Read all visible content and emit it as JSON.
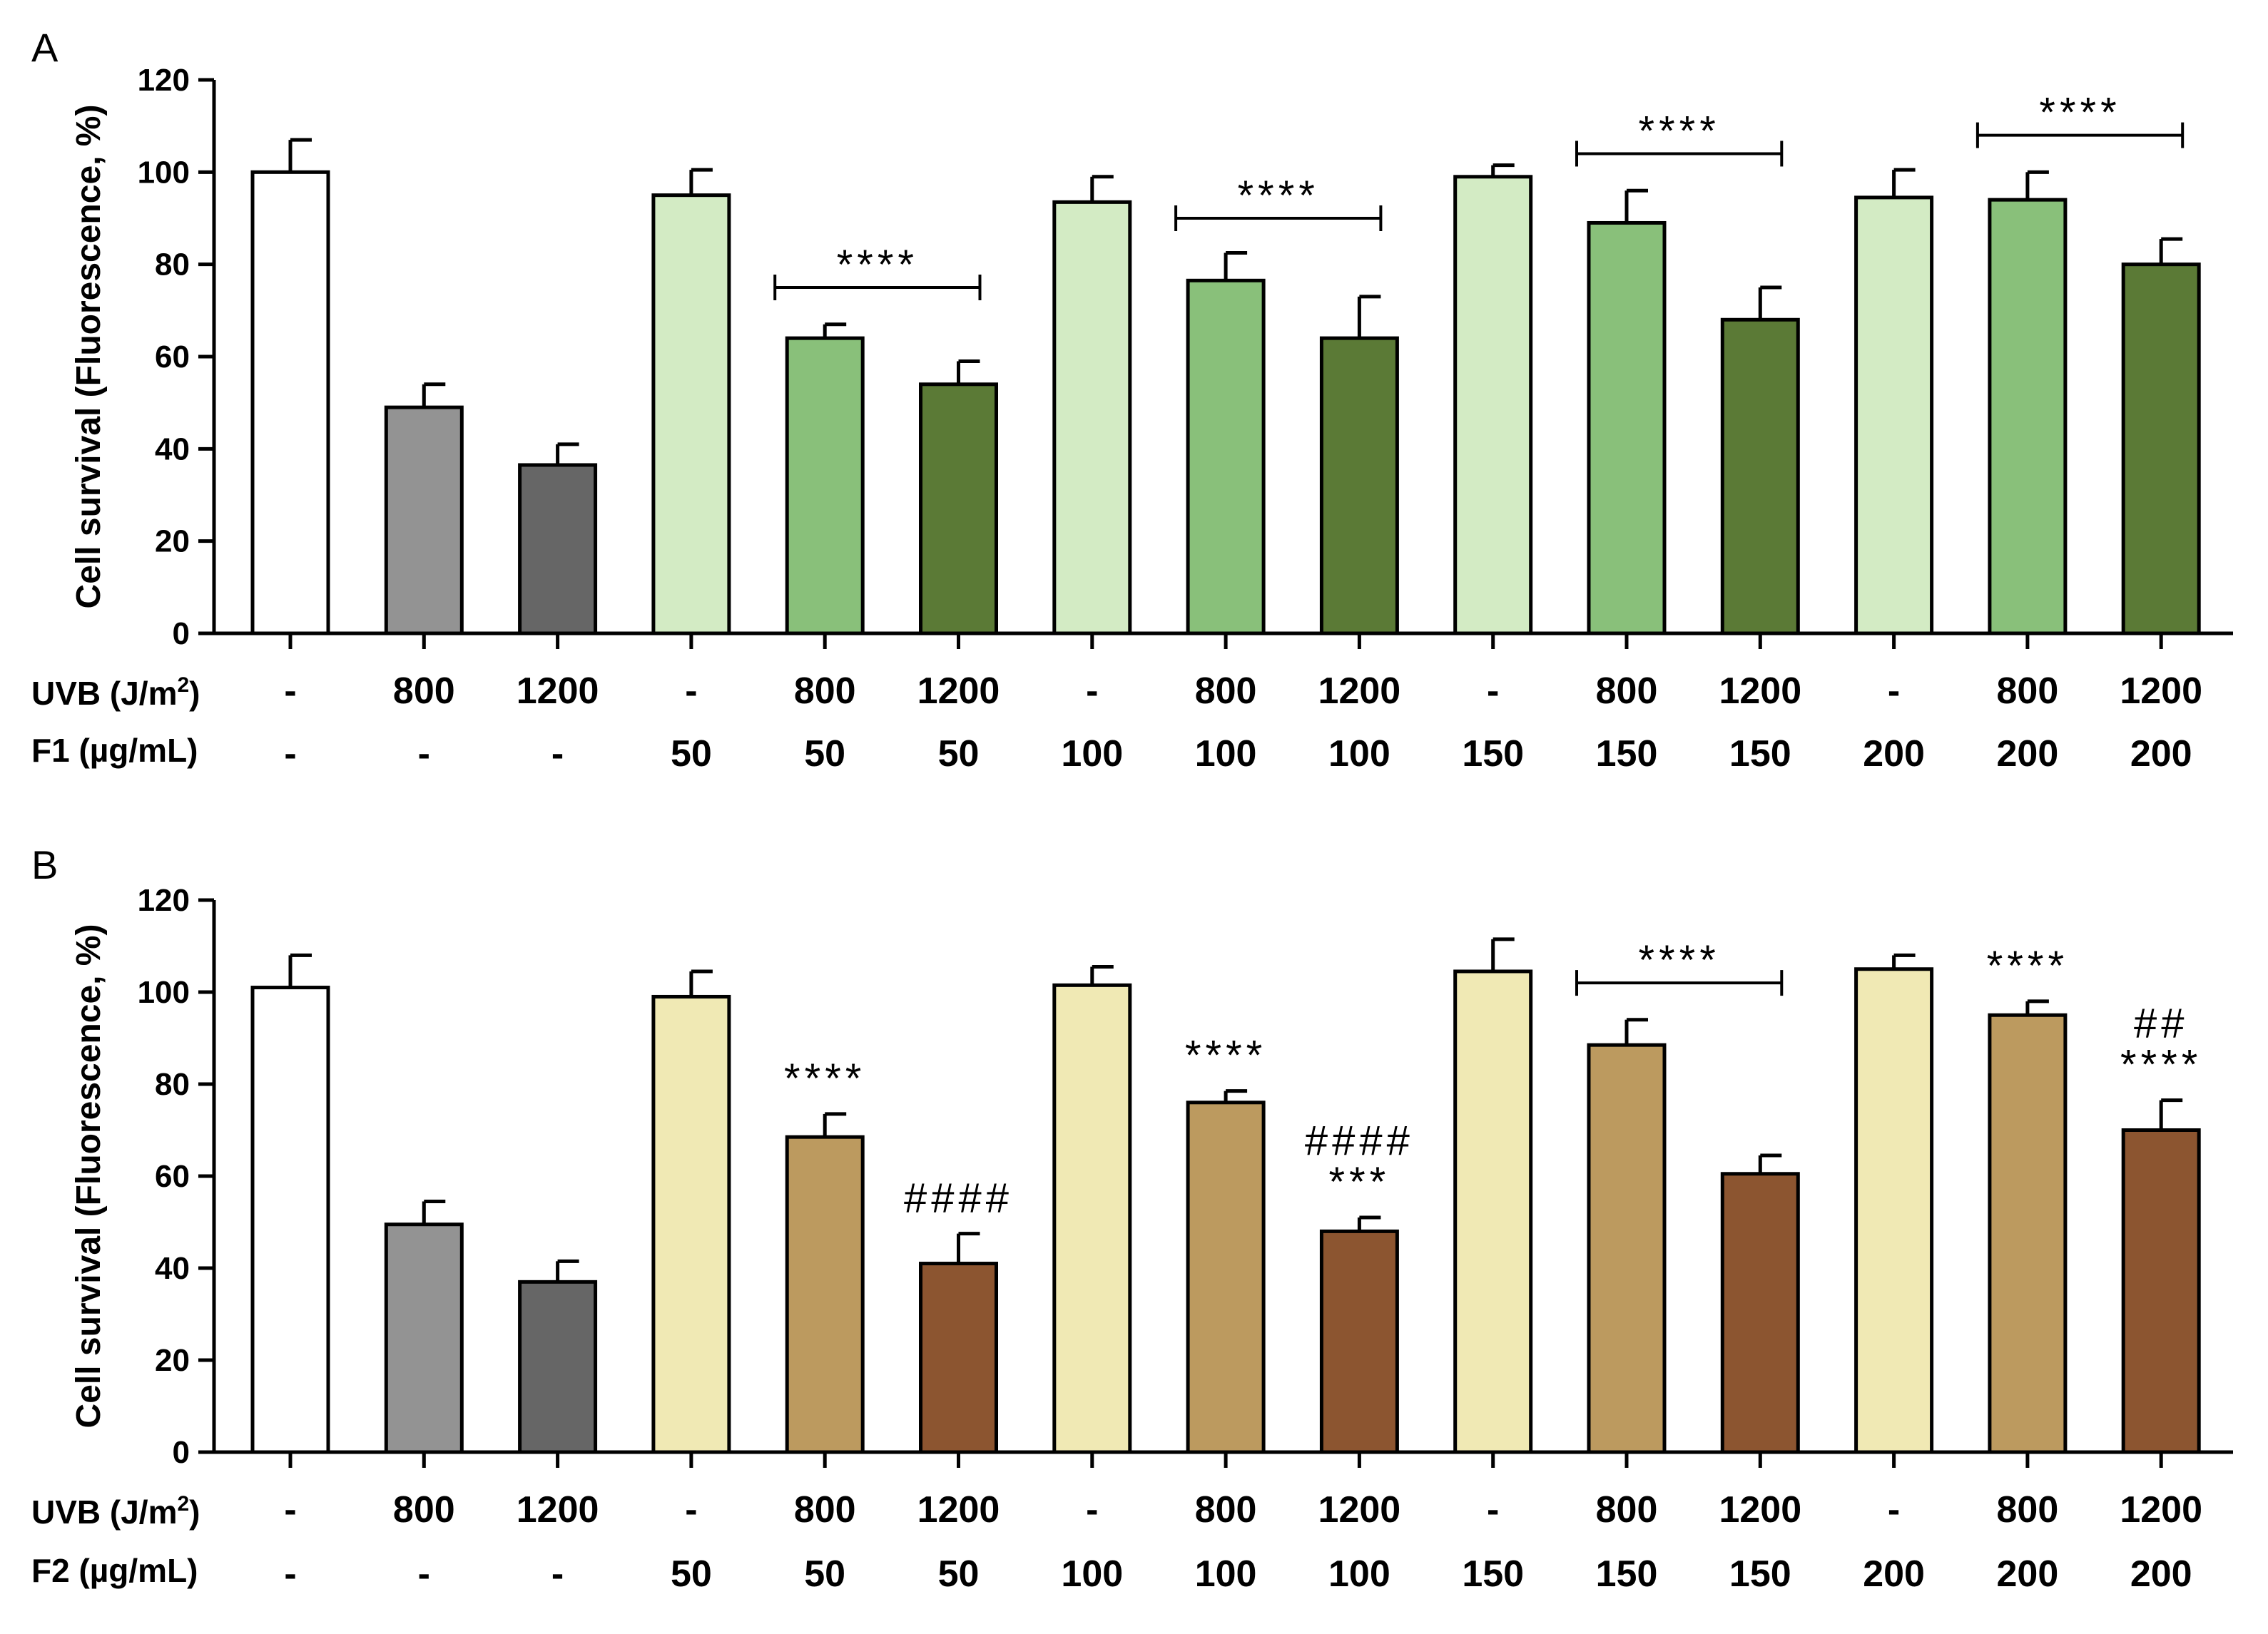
{
  "chart_data": [
    {
      "panel": "A",
      "type": "bar",
      "ylabel": "Cell survival (Fluorescence, %)",
      "ylim": [
        0,
        120
      ],
      "yticks": [
        0,
        20,
        40,
        60,
        80,
        100,
        120
      ],
      "row_labels": [
        "UVB (J/m",
        "2",
        ")",
        "F1 (µg/mL)"
      ],
      "uvb": [
        "-",
        "800",
        "1200",
        "-",
        "800",
        "1200",
        "-",
        "800",
        "1200",
        "-",
        "800",
        "1200",
        "-",
        "800",
        "1200"
      ],
      "fraction": [
        "-",
        "-",
        "-",
        "50",
        "50",
        "50",
        "100",
        "100",
        "100",
        "150",
        "150",
        "150",
        "200",
        "200",
        "200"
      ],
      "values": [
        100,
        49,
        36.5,
        95,
        64,
        54,
        93.5,
        76.5,
        64,
        99,
        89,
        68,
        94.5,
        94,
        80
      ],
      "errors": [
        7,
        5,
        4.5,
        5.5,
        3,
        5,
        5.5,
        6,
        9,
        2.5,
        7,
        7,
        6,
        6,
        5.5
      ],
      "colors": [
        "#ffffff",
        "#939393",
        "#666666",
        "#d3ebc4",
        "#89c07a",
        "#5b7a36",
        "#d3ebc4",
        "#89c07a",
        "#5b7a36",
        "#d3ebc4",
        "#89c07a",
        "#5b7a36",
        "#d3ebc4",
        "#89c07a",
        "#5b7a36"
      ],
      "brackets": [
        {
          "from": 4,
          "to": 5,
          "label": "****",
          "y": 75
        },
        {
          "from": 7,
          "to": 8,
          "label": "****",
          "y": 90
        },
        {
          "from": 10,
          "to": 11,
          "label": "****",
          "y": 104
        },
        {
          "from": 13,
          "to": 14,
          "label": "****",
          "y": 108
        }
      ],
      "annotations": []
    },
    {
      "panel": "B",
      "type": "bar",
      "ylabel": "Cell survival (Fluorescence, %)",
      "ylim": [
        0,
        120
      ],
      "yticks": [
        0,
        20,
        40,
        60,
        80,
        100,
        120
      ],
      "row_labels": [
        "UVB (J/m",
        "2",
        ")",
        "F2 (µg/mL)"
      ],
      "uvb": [
        "-",
        "800",
        "1200",
        "-",
        "800",
        "1200",
        "-",
        "800",
        "1200",
        "-",
        "800",
        "1200",
        "-",
        "800",
        "1200"
      ],
      "fraction": [
        "-",
        "-",
        "-",
        "50",
        "50",
        "50",
        "100",
        "100",
        "100",
        "150",
        "150",
        "150",
        "200",
        "200",
        "200"
      ],
      "values": [
        101,
        49.5,
        37,
        99,
        68.5,
        41,
        101.5,
        76,
        48,
        104.5,
        88.5,
        60.5,
        105,
        95,
        70
      ],
      "errors": [
        7,
        5,
        4.5,
        5.5,
        5,
        6.5,
        4,
        2.5,
        3,
        7,
        5.5,
        4,
        3,
        3,
        6.5
      ],
      "colors": [
        "#ffffff",
        "#939393",
        "#666666",
        "#f0e9b4",
        "#bc9a5f",
        "#8c5530",
        "#f0e9b4",
        "#bc9a5f",
        "#8c5530",
        "#f0e9b4",
        "#bc9a5f",
        "#8c5530",
        "#f0e9b4",
        "#bc9a5f",
        "#8c5530"
      ],
      "brackets": [
        {
          "from": 10,
          "to": 11,
          "label": "****",
          "y": 102
        }
      ],
      "annotations": [
        {
          "bar": 4,
          "lines": [
            "****"
          ]
        },
        {
          "bar": 5,
          "lines": [
            "####"
          ]
        },
        {
          "bar": 7,
          "lines": [
            "****"
          ]
        },
        {
          "bar": 8,
          "lines": [
            "####",
            "***"
          ]
        },
        {
          "bar": 13,
          "lines": [
            "****"
          ]
        },
        {
          "bar": 14,
          "lines": [
            "##",
            "****"
          ]
        }
      ]
    }
  ]
}
